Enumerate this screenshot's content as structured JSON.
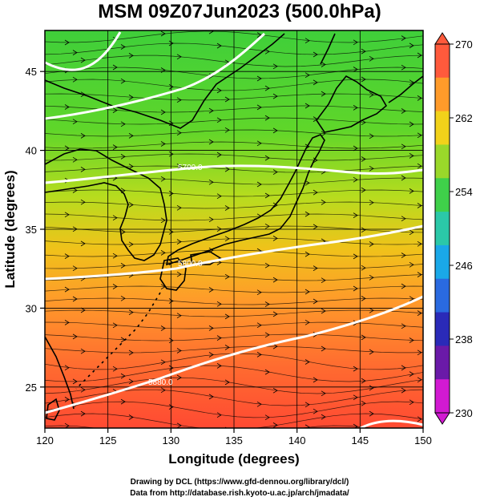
{
  "title": "MSM 09Z07Jun2023 (500.0hPa)",
  "xlabel": "Longitude (degrees)",
  "ylabel": "Latitude  (degrees)",
  "xticks": [
    "120",
    "125",
    "130",
    "135",
    "140",
    "145",
    "150"
  ],
  "yticks": [
    "25",
    "30",
    "35",
    "40",
    "45"
  ],
  "colorbar": {
    "ticks": [
      "270",
      "262",
      "254",
      "246",
      "238",
      "230"
    ],
    "colors": [
      "#ff5a3c",
      "#ff9b2a",
      "#f2d21a",
      "#9ad82a",
      "#3fd04a",
      "#2bc8a8",
      "#1aa8e8",
      "#2a6ae0",
      "#2a2ab8",
      "#6a1aa8",
      "#d21ad2"
    ]
  },
  "contours": [
    {
      "label": "5700.0"
    },
    {
      "label": "5800.0"
    },
    {
      "label": "5880.0"
    }
  ],
  "credits": {
    "line1": "Drawing by DCL (https://www.gfd-dennou.org/library/dcl/)",
    "line2": "Data from http://database.rish.kyoto-u.ac.jp/arch/jmadata/"
  },
  "chart_data": {
    "type": "heatmap",
    "title": "MSM 09Z07Jun2023 (500.0hPa)",
    "xlabel": "Longitude (degrees)",
    "ylabel": "Latitude  (degrees)",
    "xlim": [
      120,
      150
    ],
    "ylim": [
      22.4,
      47.6
    ],
    "color_range": [
      230,
      270
    ],
    "colorbar_ticks": [
      230,
      238,
      246,
      254,
      262,
      270
    ],
    "contour_labels": [
      "5700.0",
      "5800.0",
      "5880.0"
    ],
    "overlay": "wind streamlines and coastlines"
  }
}
